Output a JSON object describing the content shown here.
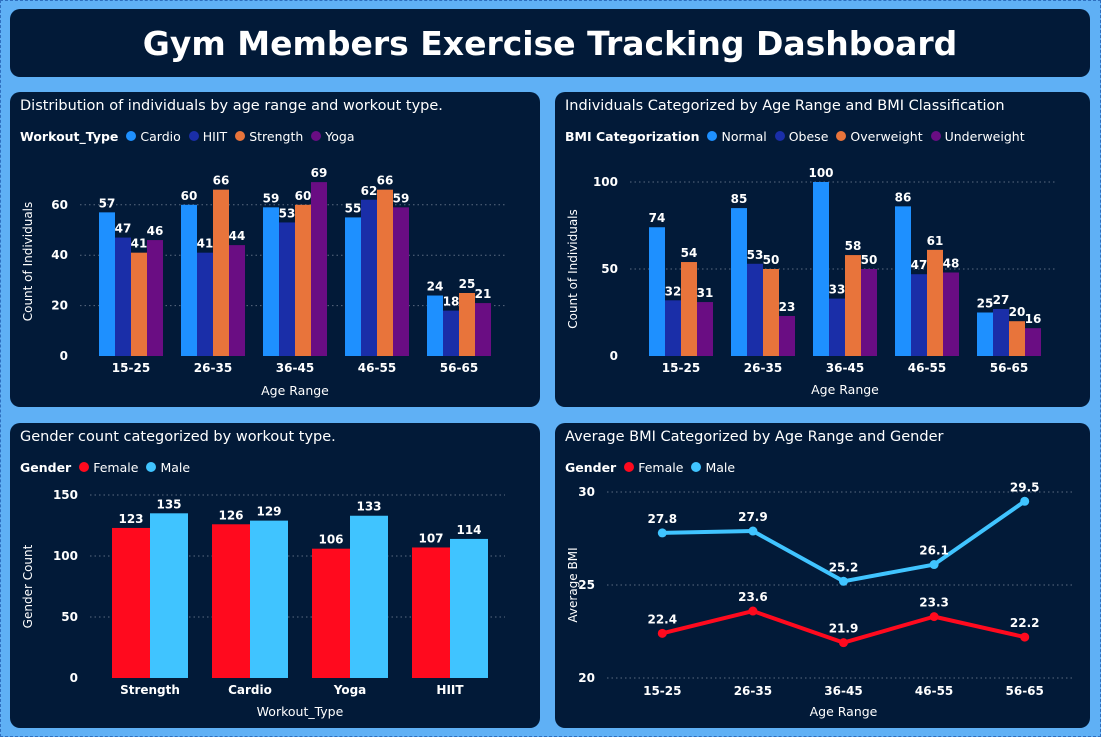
{
  "dashboard": {
    "title": "Gym Members Exercise Tracking Dashboard"
  },
  "chart_data": [
    {
      "type": "bar",
      "title": "Distribution of individuals by age range and workout type.",
      "legend_title": "Workout_Type",
      "xlabel": "Age Range",
      "ylabel": "Count of Individuals",
      "categories": [
        "15-25",
        "26-35",
        "36-45",
        "46-55",
        "56-65"
      ],
      "ylim": [
        0,
        75
      ],
      "yticks": [
        0,
        20,
        40,
        60
      ],
      "series": [
        {
          "name": "Cardio",
          "color": "#1e90ff",
          "values": [
            57,
            60,
            59,
            55,
            24
          ]
        },
        {
          "name": "HIIT",
          "color": "#1a2ea8",
          "values": [
            47,
            41,
            53,
            62,
            18
          ]
        },
        {
          "name": "Strength",
          "color": "#e8743b",
          "values": [
            41,
            66,
            60,
            66,
            25
          ]
        },
        {
          "name": "Yoga",
          "color": "#6a0d83",
          "values": [
            46,
            44,
            69,
            59,
            21
          ]
        }
      ],
      "grid": true,
      "legend_position": "top-left"
    },
    {
      "type": "bar",
      "title": "Individuals Categorized by Age Range and BMI Classification",
      "legend_title": "BMI Categorization",
      "xlabel": "Age Range",
      "ylabel": "Count of Individuals",
      "categories": [
        "15-25",
        "26-35",
        "36-45",
        "46-55",
        "56-65"
      ],
      "ylim": [
        0,
        100
      ],
      "yticks": [
        0,
        50,
        100
      ],
      "series": [
        {
          "name": "Normal",
          "color": "#1e90ff",
          "values": [
            74,
            85,
            100,
            86,
            25
          ]
        },
        {
          "name": "Obese",
          "color": "#1a2ea8",
          "values": [
            32,
            53,
            33,
            47,
            27
          ]
        },
        {
          "name": "Overweight",
          "color": "#e8743b",
          "values": [
            54,
            50,
            58,
            61,
            20
          ]
        },
        {
          "name": "Underweight",
          "color": "#6a0d83",
          "values": [
            31,
            23,
            50,
            48,
            16
          ]
        }
      ],
      "grid": true,
      "legend_position": "top-left"
    },
    {
      "type": "bar",
      "title": "Gender count categorized by workout type.",
      "legend_title": "Gender",
      "xlabel": "Workout_Type",
      "ylabel": "Gender Count",
      "categories": [
        "Strength",
        "Cardio",
        "Yoga",
        "HIIT"
      ],
      "ylim": [
        0,
        150
      ],
      "yticks": [
        0,
        50,
        100,
        150
      ],
      "series": [
        {
          "name": "Female",
          "color": "#ff0a1e",
          "values": [
            123,
            126,
            106,
            107
          ]
        },
        {
          "name": "Male",
          "color": "#40c4ff",
          "values": [
            135,
            129,
            133,
            114
          ]
        }
      ],
      "grid": true,
      "legend_position": "top-left"
    },
    {
      "type": "line",
      "title": "Average BMI Categorized by Age Range and Gender",
      "legend_title": "Gender",
      "xlabel": "Age Range",
      "ylabel": "Average BMI",
      "categories": [
        "15-25",
        "26-35",
        "36-45",
        "46-55",
        "56-65"
      ],
      "ylim": [
        20,
        30
      ],
      "yticks": [
        20,
        25,
        30
      ],
      "series": [
        {
          "name": "Female",
          "color": "#ff0a1e",
          "values": [
            22.4,
            23.6,
            21.9,
            23.3,
            22.2
          ]
        },
        {
          "name": "Male",
          "color": "#40c4ff",
          "values": [
            27.8,
            27.9,
            25.2,
            26.1,
            29.5
          ]
        }
      ],
      "grid": true,
      "legend_position": "top-left"
    }
  ]
}
